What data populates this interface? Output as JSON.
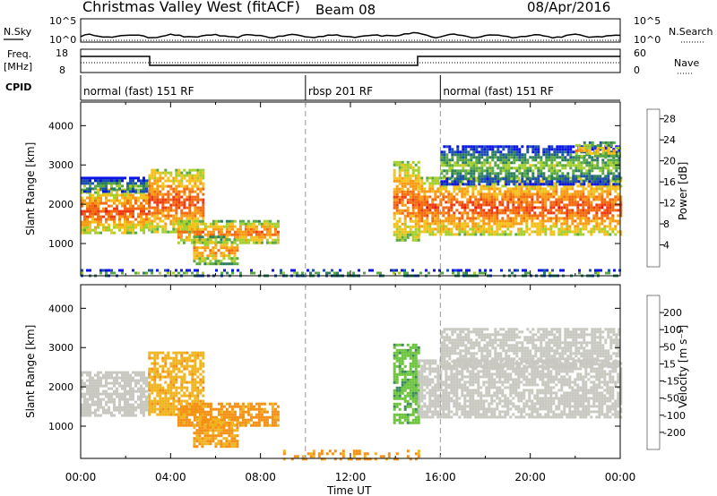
{
  "header": {
    "station": "Christmas Valley West (fitACF)",
    "beam": "Beam 08",
    "date": "08/Apr/2016"
  },
  "strips": {
    "nsky_label": "N.Sky",
    "nsearch_label": "N.Search",
    "noise_ticks": [
      "10^5",
      "10^0"
    ],
    "freq_label_1": "Freq.",
    "freq_label_2": "[MHz]",
    "freq_ticks": [
      "18",
      "8"
    ],
    "nave_label": "Nave",
    "nave_ticks": [
      "60",
      "0"
    ],
    "cpid_label": "CPID",
    "modes": [
      {
        "label": "normal (fast) 151 RF",
        "start_h": 0
      },
      {
        "label": "rbsp 201 RF",
        "start_h": 10
      },
      {
        "label": "normal (fast) 151 RF",
        "start_h": 16
      }
    ]
  },
  "axes": {
    "ylabel": "Slant Range [km]",
    "yticks": [
      "1000",
      "2000",
      "3000",
      "4000"
    ],
    "xlabel": "Time UT",
    "xticks": [
      "00:00",
      "04:00",
      "08:00",
      "12:00",
      "16:00",
      "20:00",
      "00:00"
    ]
  },
  "colorbars": {
    "power": {
      "label": "Power [dB]",
      "ticks": [
        "4",
        "8",
        "12",
        "16",
        "20",
        "24",
        "28"
      ],
      "colors": [
        "#0a14e6",
        "#1c4fb0",
        "#2e7f5e",
        "#58a845",
        "#a4cf2c",
        "#f4c21c",
        "#f89a14",
        "#f46a10",
        "#ee3a12",
        "#e60f0f"
      ]
    },
    "velocity": {
      "label": "Velocity [m s⁻¹]",
      "ticks": [
        "200",
        "100",
        "50",
        "15",
        "-15",
        "-50",
        "-100",
        "-200"
      ],
      "colors": [
        "#1a2bd6",
        "#2464a0",
        "#3a8c5a",
        "#6cc43c",
        "#c8c8c0",
        "#f0b41e",
        "#f49014",
        "#f0601a",
        "#e81c14"
      ]
    }
  },
  "chart_data": [
    {
      "type": "heatmap",
      "title": "Power",
      "xlabel": "Time UT",
      "ylabel": "Slant Range [km]",
      "xlim_hours": [
        0,
        24
      ],
      "ylim_km": [
        180,
        4600
      ],
      "color_ticks": [
        4,
        8,
        12,
        16,
        20,
        24,
        28
      ],
      "regions": [
        {
          "t": [
            0,
            3
          ],
          "r": [
            1300,
            2400
          ],
          "level": 26
        },
        {
          "t": [
            0,
            3
          ],
          "r": [
            2300,
            2700
          ],
          "level": 12
        },
        {
          "t": [
            3,
            5.5
          ],
          "r": [
            1300,
            2900
          ],
          "level": 26
        },
        {
          "t": [
            4.3,
            8.8
          ],
          "r": [
            1000,
            1600
          ],
          "level": 24
        },
        {
          "t": [
            5,
            7
          ],
          "r": [
            500,
            1200
          ],
          "level": 22
        },
        {
          "t": [
            0,
            24
          ],
          "r": [
            180,
            350
          ],
          "level": 14
        },
        {
          "t": [
            13.9,
            15
          ],
          "r": [
            1100,
            3100
          ],
          "level": 25
        },
        {
          "t": [
            15,
            24
          ],
          "r": [
            1200,
            2700
          ],
          "level": 26
        },
        {
          "t": [
            16,
            24
          ],
          "r": [
            2500,
            3500
          ],
          "level": 14
        },
        {
          "t": [
            22,
            24
          ],
          "r": [
            3200,
            3600
          ],
          "level": 20
        }
      ]
    },
    {
      "type": "heatmap",
      "title": "Velocity",
      "xlabel": "Time UT",
      "ylabel": "Slant Range [km]",
      "xlim_hours": [
        0,
        24
      ],
      "ylim_km": [
        180,
        4600
      ],
      "color_ticks": [
        200,
        100,
        50,
        15,
        -15,
        -50,
        -100,
        -200
      ],
      "regions": [
        {
          "t": [
            0,
            3
          ],
          "r": [
            1300,
            2400
          ],
          "velocity": 0
        },
        {
          "t": [
            3,
            5.5
          ],
          "r": [
            1300,
            2900
          ],
          "velocity": -40
        },
        {
          "t": [
            4.3,
            8.8
          ],
          "r": [
            1000,
            1600
          ],
          "velocity": -60
        },
        {
          "t": [
            5,
            7
          ],
          "r": [
            500,
            1200
          ],
          "velocity": -50
        },
        {
          "t": [
            9,
            15
          ],
          "r": [
            180,
            400
          ],
          "velocity": -60
        },
        {
          "t": [
            13.9,
            15
          ],
          "r": [
            1100,
            3100
          ],
          "velocity": 40
        },
        {
          "t": [
            15,
            24
          ],
          "r": [
            1200,
            2700
          ],
          "velocity": 0
        },
        {
          "t": [
            16,
            24
          ],
          "r": [
            2500,
            3500
          ],
          "velocity": 0
        }
      ]
    }
  ]
}
